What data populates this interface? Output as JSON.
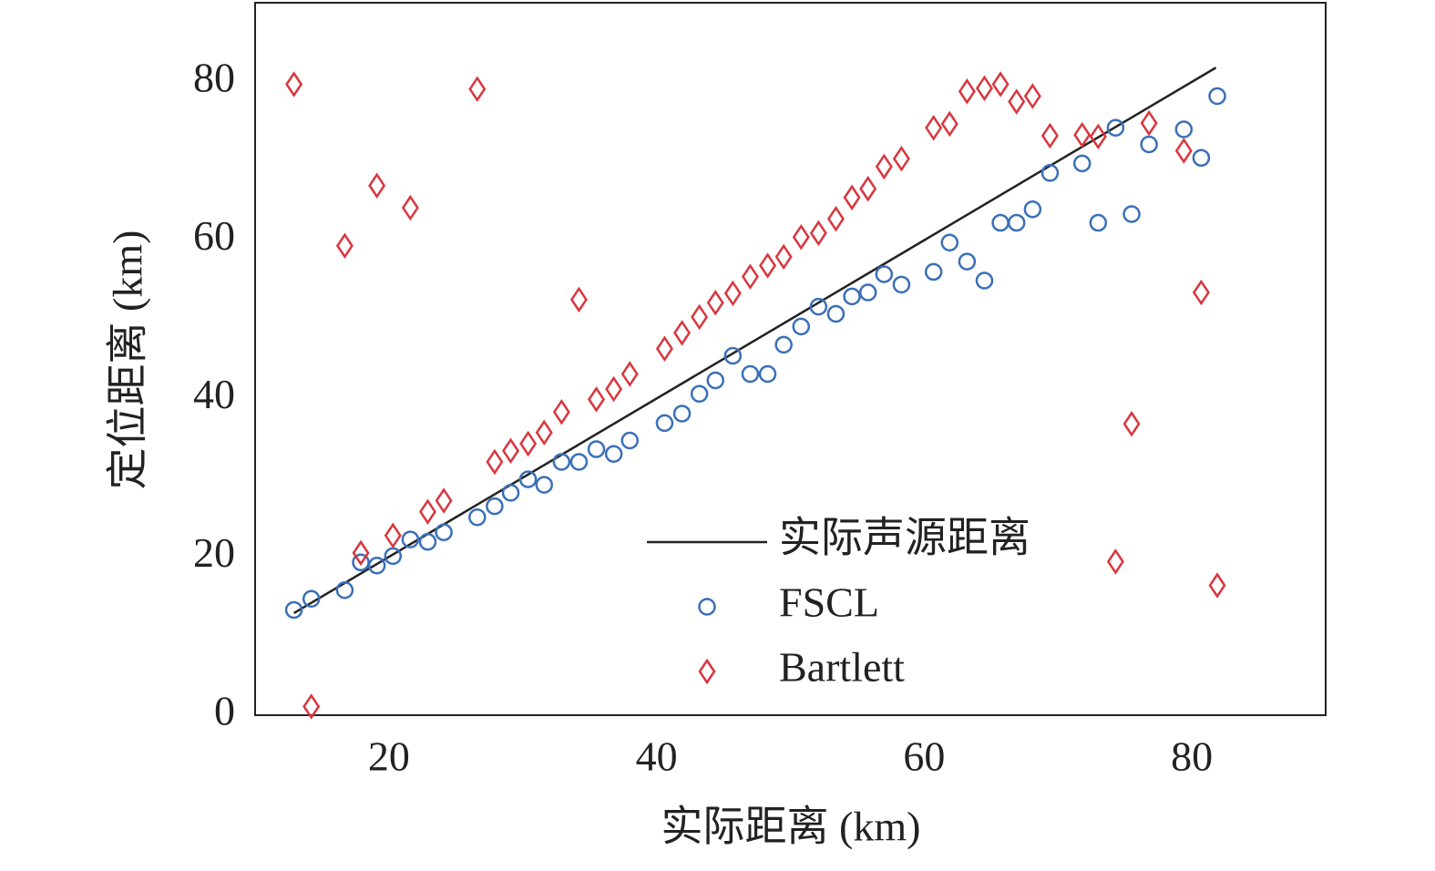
{
  "chart_data": {
    "type": "scatter",
    "x_label": "实际距离 (km)",
    "y_label": "定位距离 (km)",
    "xlim": [
      10,
      90
    ],
    "ylim": [
      0,
      90
    ],
    "xticks": [
      20,
      40,
      60,
      80
    ],
    "yticks": [
      0,
      20,
      40,
      60,
      80
    ],
    "grid": false,
    "legend": "lower right",
    "series": [
      {
        "name": "实际声源距离",
        "color": "#222222",
        "marker": "line",
        "x": [
          12.9,
          81.8
        ],
        "values": [
          12.9,
          81.8
        ]
      },
      {
        "name": "FSCL",
        "color": "#3a6fb8",
        "marker": "circle",
        "x": [
          12.9,
          14.2,
          16.7,
          17.9,
          19.1,
          20.3,
          21.6,
          22.9,
          24.1,
          26.6,
          27.9,
          29.1,
          30.4,
          31.6,
          32.9,
          34.2,
          35.5,
          36.8,
          38.0,
          40.6,
          41.9,
          43.2,
          44.4,
          45.7,
          47.0,
          48.3,
          49.5,
          50.8,
          52.1,
          53.4,
          54.6,
          55.8,
          57.0,
          58.3,
          60.7,
          61.9,
          63.2,
          64.5,
          65.7,
          66.9,
          68.1,
          69.4,
          71.8,
          73.0,
          74.3,
          75.5,
          76.8,
          79.4,
          80.7,
          81.9
        ],
        "values": [
          13.3,
          14.7,
          15.8,
          19.3,
          18.9,
          20.1,
          22.2,
          21.9,
          23.1,
          25.0,
          26.4,
          28.1,
          29.8,
          29.1,
          32.0,
          32.0,
          33.6,
          33.0,
          34.7,
          36.9,
          38.1,
          40.6,
          42.3,
          45.4,
          43.1,
          43.1,
          46.8,
          49.1,
          51.6,
          50.7,
          52.9,
          53.4,
          55.7,
          54.4,
          56.0,
          59.7,
          57.3,
          54.9,
          62.2,
          62.2,
          63.9,
          68.5,
          69.7,
          62.2,
          74.2,
          63.3,
          72.1,
          74.0,
          70.4,
          78.2
        ]
      },
      {
        "name": "Bartlett",
        "color": "#d9363e",
        "marker": "diamond",
        "x": [
          12.9,
          14.2,
          16.7,
          17.9,
          19.1,
          20.3,
          21.6,
          22.9,
          24.1,
          26.6,
          27.9,
          29.1,
          30.4,
          31.6,
          32.9,
          34.2,
          35.5,
          36.8,
          38.0,
          40.6,
          41.9,
          43.2,
          44.4,
          45.7,
          47.0,
          48.3,
          49.5,
          50.8,
          52.1,
          53.4,
          54.6,
          55.8,
          57.0,
          58.3,
          60.7,
          61.9,
          63.2,
          64.5,
          65.7,
          66.9,
          68.1,
          69.4,
          71.8,
          73.0,
          74.3,
          75.5,
          76.8,
          79.4,
          80.7,
          81.9
        ],
        "values": [
          79.7,
          1.1,
          59.3,
          20.5,
          66.9,
          22.7,
          64.1,
          25.7,
          27.1,
          79.1,
          32.0,
          33.4,
          34.3,
          35.7,
          38.3,
          52.5,
          39.9,
          41.2,
          43.1,
          46.3,
          48.3,
          50.3,
          52.1,
          53.3,
          55.4,
          56.8,
          57.9,
          60.4,
          60.9,
          62.7,
          65.4,
          66.5,
          69.3,
          70.3,
          74.2,
          74.7,
          78.8,
          79.2,
          79.7,
          77.5,
          78.2,
          73.2,
          73.3,
          73.1,
          19.4,
          36.8,
          74.8,
          71.3,
          53.4,
          16.4
        ]
      }
    ]
  }
}
